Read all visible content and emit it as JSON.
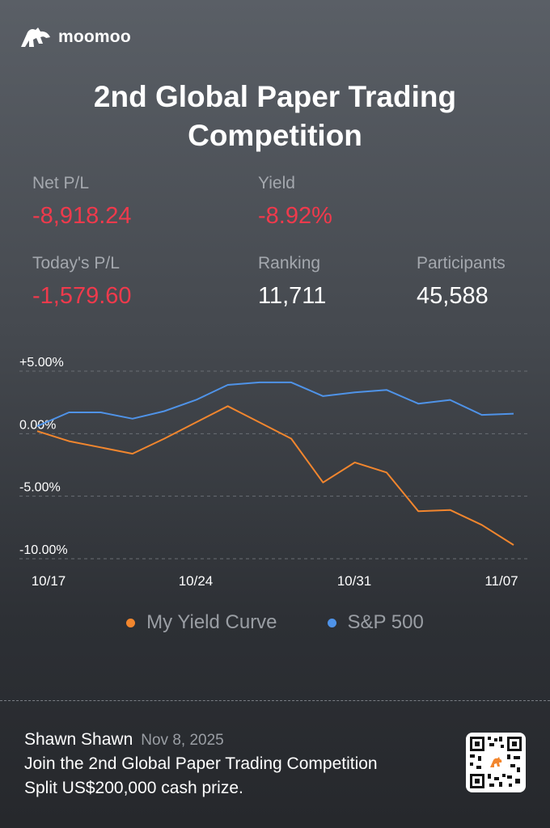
{
  "brand": {
    "name": "moomoo"
  },
  "title": "2nd Global Paper Trading Competition",
  "stats": {
    "net_pl": {
      "label": "Net P/L",
      "value": "-8,918.24"
    },
    "yield": {
      "label": "Yield",
      "value": "-8.92%"
    },
    "todays_pl": {
      "label": "Today's P/L",
      "value": "-1,579.60"
    },
    "ranking": {
      "label": "Ranking",
      "value": "11,711"
    },
    "participants": {
      "label": "Participants",
      "value": "45,588"
    }
  },
  "chart_data": {
    "type": "line",
    "x": [
      "10/17",
      "10/20",
      "10/21",
      "10/22",
      "10/23",
      "10/24",
      "10/27",
      "10/28",
      "10/29",
      "10/30",
      "10/31",
      "11/03",
      "11/04",
      "11/05",
      "11/06",
      "11/07"
    ],
    "x_tick_labels": [
      "10/17",
      "10/24",
      "10/31",
      "11/07"
    ],
    "y_tick_labels": [
      "+5.00%",
      "0.00%",
      "-5.00%",
      "-10.00%"
    ],
    "ylim": [
      -10,
      5
    ],
    "series": [
      {
        "name": "My Yield Curve",
        "color": "#f2862e",
        "values": [
          0.2,
          -0.6,
          -1.1,
          -1.6,
          -0.4,
          0.9,
          2.2,
          0.9,
          -0.4,
          -3.9,
          -2.3,
          -3.1,
          -6.2,
          -6.1,
          -7.3,
          -8.9
        ]
      },
      {
        "name": "S&P 500",
        "color": "#4f93e8",
        "values": [
          0.6,
          1.7,
          1.7,
          1.2,
          1.8,
          2.7,
          3.9,
          4.1,
          4.1,
          3.0,
          3.3,
          3.5,
          2.4,
          2.7,
          1.5,
          1.6
        ]
      }
    ],
    "grid": true,
    "legend": "bottom"
  },
  "footer": {
    "user": "Shawn Shawn",
    "date": "Nov 8, 2025",
    "line1": "Join the 2nd Global Paper Trading Competition",
    "line2": "Split US$200,000 cash prize."
  }
}
